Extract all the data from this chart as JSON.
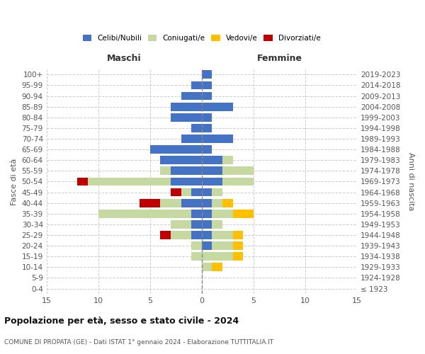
{
  "age_groups": [
    "0-4",
    "5-9",
    "10-14",
    "15-19",
    "20-24",
    "25-29",
    "30-34",
    "35-39",
    "40-44",
    "45-49",
    "50-54",
    "55-59",
    "60-64",
    "65-69",
    "70-74",
    "75-79",
    "80-84",
    "85-89",
    "90-94",
    "95-99",
    "100+"
  ],
  "birth_years": [
    "2019-2023",
    "2014-2018",
    "2009-2013",
    "2004-2008",
    "1999-2003",
    "1994-1998",
    "1989-1993",
    "1984-1988",
    "1979-1983",
    "1974-1978",
    "1969-1973",
    "1964-1968",
    "1959-1963",
    "1954-1958",
    "1949-1953",
    "1944-1948",
    "1939-1943",
    "1934-1938",
    "1929-1933",
    "1924-1928",
    "≤ 1923"
  ],
  "colors": {
    "celibi": "#4472c4",
    "coniugati": "#c5d9a0",
    "vedovi": "#ffc000",
    "divorziati": "#c00000"
  },
  "maschi": {
    "celibi": [
      0,
      1,
      2,
      3,
      3,
      1,
      2,
      5,
      4,
      3,
      3,
      1,
      2,
      1,
      1,
      1,
      0,
      0,
      0,
      0,
      0
    ],
    "coniugati": [
      0,
      0,
      0,
      0,
      0,
      0,
      0,
      0,
      0,
      1,
      8,
      1,
      2,
      9,
      2,
      2,
      1,
      1,
      0,
      0,
      0
    ],
    "vedovi": [
      0,
      0,
      0,
      0,
      0,
      0,
      0,
      0,
      0,
      0,
      0,
      0,
      0,
      0,
      0,
      0,
      0,
      0,
      0,
      0,
      0
    ],
    "divorziati": [
      0,
      0,
      0,
      0,
      0,
      0,
      0,
      0,
      0,
      0,
      1,
      1,
      2,
      0,
      0,
      1,
      0,
      0,
      0,
      0,
      0
    ]
  },
  "femmine": {
    "celibi": [
      1,
      1,
      1,
      3,
      1,
      1,
      3,
      1,
      2,
      2,
      2,
      1,
      1,
      1,
      1,
      1,
      1,
      0,
      0,
      0,
      0
    ],
    "coniugati": [
      0,
      0,
      0,
      0,
      0,
      0,
      0,
      0,
      1,
      3,
      3,
      1,
      1,
      2,
      1,
      2,
      2,
      3,
      1,
      0,
      0
    ],
    "vedovi": [
      0,
      0,
      0,
      0,
      0,
      0,
      0,
      0,
      0,
      0,
      0,
      0,
      1,
      2,
      0,
      1,
      1,
      1,
      1,
      0,
      0
    ],
    "divorziati": [
      0,
      0,
      0,
      0,
      0,
      0,
      0,
      0,
      0,
      0,
      0,
      0,
      0,
      0,
      0,
      0,
      0,
      0,
      0,
      0,
      0
    ]
  },
  "title": "Popolazione per età, sesso e stato civile - 2024",
  "subtitle": "COMUNE DI PROPATA (GE) - Dati ISTAT 1° gennaio 2024 - Elaborazione TUTTITALIA.IT",
  "xlabel_left": "Maschi",
  "xlabel_right": "Femmine",
  "ylabel_left": "Fasce di età",
  "ylabel_right": "Anni di nascita",
  "xlim": 15,
  "bg_color": "#ffffff",
  "grid_color": "#cccccc",
  "legend_labels": [
    "Celibi/Nubili",
    "Coniugati/e",
    "Vedovi/e",
    "Divorziati/e"
  ]
}
